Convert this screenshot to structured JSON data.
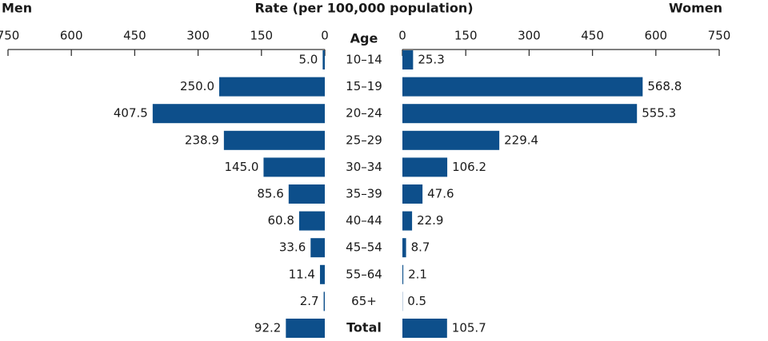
{
  "chart_data": {
    "type": "butterfly",
    "title": "Rate (per 100,000 population)",
    "category_label": "Age",
    "categories": [
      "10–14",
      "15–19",
      "20–24",
      "25–29",
      "30–34",
      "35–39",
      "40–44",
      "45–54",
      "55–64",
      "65+",
      "Total"
    ],
    "series": [
      {
        "name": "Men",
        "color": "#0d4f8b",
        "values": [
          5.0,
          250.0,
          407.5,
          238.9,
          145.0,
          85.6,
          60.8,
          33.6,
          11.4,
          2.7,
          92.2
        ],
        "value_labels": [
          "5.0",
          "250.0",
          "407.5",
          "238.9",
          "145.0",
          "85.6",
          "60.8",
          "33.6",
          "11.4",
          "2.7",
          "92.2"
        ]
      },
      {
        "name": "Women",
        "color": "#0d4f8b",
        "values": [
          25.3,
          568.8,
          555.3,
          229.4,
          106.2,
          47.6,
          22.9,
          8.7,
          2.1,
          0.5,
          105.7
        ],
        "value_labels": [
          "25.3",
          "568.8",
          "555.3",
          "229.4",
          "106.2",
          "47.6",
          "22.9",
          "8.7",
          "2.1",
          "0.5",
          "105.7"
        ]
      }
    ],
    "xlim": [
      0,
      750
    ],
    "xticks": [
      0,
      150,
      300,
      450,
      600,
      750
    ]
  }
}
